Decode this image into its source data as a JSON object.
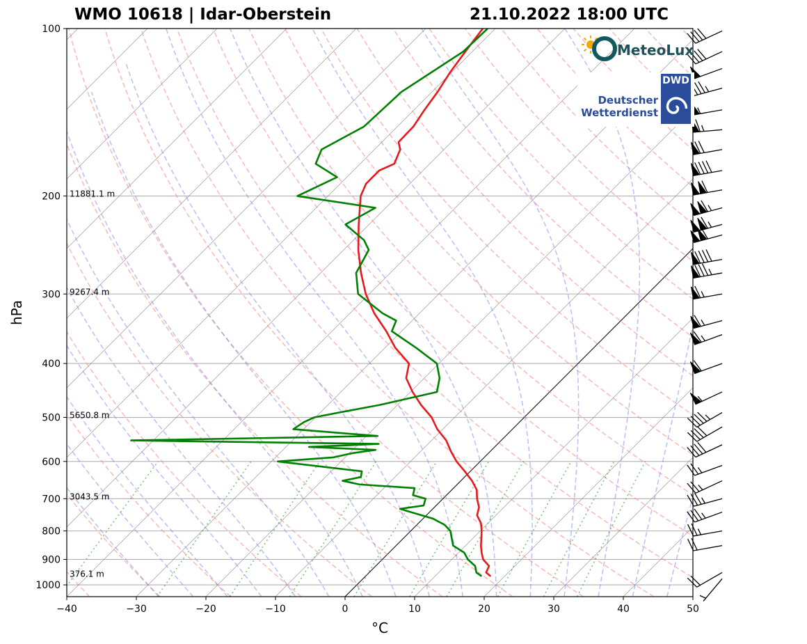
{
  "header": {
    "title_left": "WMO 10618 | Idar-Oberstein",
    "title_right": "21.10.2022 18:00 UTC"
  },
  "logos": {
    "meteolux": "MeteoLux",
    "dwd_abbr": "DWD",
    "dwd_line1": "Deutscher",
    "dwd_line2": "Wetterdienst"
  },
  "chart_data": {
    "type": "skew-t",
    "title": "WMO 10618 | Idar-Oberstein — 21.10.2022 18:00 UTC",
    "xlabel": "°C",
    "ylabel": "hPa",
    "xlim": [
      -40,
      50
    ],
    "ylim": [
      1050,
      100
    ],
    "x_ticks": [
      -40,
      -30,
      -20,
      -10,
      0,
      10,
      20,
      30,
      40,
      50
    ],
    "y_ticks": [
      100,
      200,
      300,
      400,
      500,
      600,
      700,
      800,
      900,
      1000
    ],
    "grid": true,
    "height_labels": [
      {
        "p": 200,
        "label": "11881.1 m"
      },
      {
        "p": 300,
        "label": "9267.4 m"
      },
      {
        "p": 500,
        "label": "5650.8 m"
      },
      {
        "p": 700,
        "label": "3043.5 m"
      },
      {
        "p": 965,
        "label": "376.1 m"
      }
    ],
    "series": [
      {
        "name": "Temperature",
        "color": "#e41a1c",
        "points": [
          [
            965,
            18.0
          ],
          [
            950,
            16.8
          ],
          [
            925,
            16.3
          ],
          [
            900,
            14.5
          ],
          [
            875,
            13.3
          ],
          [
            850,
            12.2
          ],
          [
            800,
            10.2
          ],
          [
            775,
            9.0
          ],
          [
            750,
            7.3
          ],
          [
            725,
            6.4
          ],
          [
            700,
            4.9
          ],
          [
            675,
            3.6
          ],
          [
            650,
            1.6
          ],
          [
            625,
            -0.8
          ],
          [
            600,
            -3.4
          ],
          [
            575,
            -5.7
          ],
          [
            550,
            -7.9
          ],
          [
            525,
            -10.8
          ],
          [
            500,
            -13.3
          ],
          [
            475,
            -16.6
          ],
          [
            450,
            -19.7
          ],
          [
            425,
            -22.6
          ],
          [
            400,
            -24.3
          ],
          [
            375,
            -28.5
          ],
          [
            350,
            -32.2
          ],
          [
            325,
            -36.5
          ],
          [
            300,
            -40.5
          ],
          [
            275,
            -44.2
          ],
          [
            250,
            -47.9
          ],
          [
            225,
            -51.5
          ],
          [
            200,
            -55.3
          ],
          [
            190,
            -56.3
          ],
          [
            180,
            -56.3
          ],
          [
            175,
            -55.1
          ],
          [
            165,
            -56.3
          ],
          [
            160,
            -57.6
          ],
          [
            150,
            -57.7
          ],
          [
            140,
            -58.5
          ],
          [
            130,
            -59.2
          ],
          [
            120,
            -60.2
          ],
          [
            110,
            -61.0
          ],
          [
            100,
            -61.8
          ]
        ]
      },
      {
        "name": "Dewpoint",
        "color": "#008000",
        "points": [
          [
            965,
            16.7
          ],
          [
            950,
            15.4
          ],
          [
            925,
            14.3
          ],
          [
            900,
            12.3
          ],
          [
            875,
            10.8
          ],
          [
            850,
            8.2
          ],
          [
            800,
            5.7
          ],
          [
            780,
            4.0
          ],
          [
            760,
            1.4
          ],
          [
            735,
            -3.7
          ],
          [
            730,
            -4.7
          ],
          [
            720,
            -1.8
          ],
          [
            700,
            -2.5
          ],
          [
            690,
            -4.8
          ],
          [
            670,
            -5.6
          ],
          [
            660,
            -14.0
          ],
          [
            650,
            -17.0
          ],
          [
            640,
            -14.9
          ],
          [
            625,
            -15.6
          ],
          [
            600,
            -29.1
          ],
          [
            590,
            -21.7
          ],
          [
            580,
            -19.6
          ],
          [
            572,
            -16.7
          ],
          [
            565,
            -26.7
          ],
          [
            558,
            -17.1
          ],
          [
            550,
            -53.2
          ],
          [
            540,
            -18.4
          ],
          [
            525,
            -31.5
          ],
          [
            510,
            -31.0
          ],
          [
            500,
            -30.2
          ],
          [
            490,
            -27.3
          ],
          [
            475,
            -22.6
          ],
          [
            460,
            -18.8
          ],
          [
            450,
            -16.2
          ],
          [
            425,
            -17.8
          ],
          [
            400,
            -20.3
          ],
          [
            375,
            -25.5
          ],
          [
            350,
            -31.4
          ],
          [
            335,
            -32.3
          ],
          [
            325,
            -35.3
          ],
          [
            300,
            -41.6
          ],
          [
            275,
            -44.9
          ],
          [
            250,
            -46.4
          ],
          [
            240,
            -48.5
          ],
          [
            225,
            -53.4
          ],
          [
            210,
            -51.5
          ],
          [
            200,
            -64.4
          ],
          [
            185,
            -61.4
          ],
          [
            175,
            -66.4
          ],
          [
            165,
            -67.6
          ],
          [
            150,
            -64.8
          ],
          [
            130,
            -64.4
          ],
          [
            110,
            -61.3
          ],
          [
            100,
            -61.1
          ]
        ]
      }
    ],
    "reference_lines": {
      "isotherms_c": [
        -120,
        -110,
        -100,
        -90,
        -80,
        -70,
        -60,
        -50,
        -40,
        -30,
        -20,
        -10,
        0,
        10,
        20,
        30,
        40,
        50
      ],
      "highlight_isotherm_c": 0,
      "dry_adiabats_c": [
        -70,
        -60,
        -50,
        -40,
        -30,
        -20,
        -10,
        0,
        10,
        20,
        30,
        40,
        50,
        60,
        70,
        80,
        90,
        100,
        110,
        120,
        130,
        140,
        150,
        160,
        170,
        180,
        190,
        200,
        210,
        220
      ],
      "moist_adiabats_c": [
        -30,
        -25,
        -20,
        -15,
        -10,
        -5,
        0,
        5,
        10,
        15,
        20,
        25,
        30,
        35,
        40,
        45
      ],
      "mixing_ratios_gkg": [
        0.1,
        0.4,
        1,
        2,
        4,
        7,
        10,
        16,
        24,
        32
      ]
    },
    "wind_barbs": [
      {
        "p": 975,
        "speed_kt": 5,
        "dir_deg": 220
      },
      {
        "p": 950,
        "speed_kt": 20,
        "dir_deg": 240
      },
      {
        "p": 850,
        "speed_kt": 20,
        "dir_deg": 260
      },
      {
        "p": 800,
        "speed_kt": 25,
        "dir_deg": 260
      },
      {
        "p": 740,
        "speed_kt": 35,
        "dir_deg": 250
      },
      {
        "p": 700,
        "speed_kt": 35,
        "dir_deg": 255
      },
      {
        "p": 650,
        "speed_kt": 25,
        "dir_deg": 245
      },
      {
        "p": 610,
        "speed_kt": 25,
        "dir_deg": 250
      },
      {
        "p": 560,
        "speed_kt": 40,
        "dir_deg": 245
      },
      {
        "p": 520,
        "speed_kt": 40,
        "dir_deg": 240
      },
      {
        "p": 490,
        "speed_kt": 45,
        "dir_deg": 240
      },
      {
        "p": 450,
        "speed_kt": 55,
        "dir_deg": 245
      },
      {
        "p": 400,
        "speed_kt": 60,
        "dir_deg": 250
      },
      {
        "p": 355,
        "speed_kt": 65,
        "dir_deg": 250
      },
      {
        "p": 335,
        "speed_kt": 65,
        "dir_deg": 255
      },
      {
        "p": 300,
        "speed_kt": 65,
        "dir_deg": 260
      },
      {
        "p": 275,
        "speed_kt": 85,
        "dir_deg": 260
      },
      {
        "p": 260,
        "speed_kt": 90,
        "dir_deg": 260
      },
      {
        "p": 235,
        "speed_kt": 110,
        "dir_deg": 255
      },
      {
        "p": 225,
        "speed_kt": 115,
        "dir_deg": 255
      },
      {
        "p": 210,
        "speed_kt": 115,
        "dir_deg": 255
      },
      {
        "p": 195,
        "speed_kt": 110,
        "dir_deg": 260
      },
      {
        "p": 180,
        "speed_kt": 90,
        "dir_deg": 260
      },
      {
        "p": 165,
        "speed_kt": 70,
        "dir_deg": 260
      },
      {
        "p": 152,
        "speed_kt": 65,
        "dir_deg": 265
      },
      {
        "p": 140,
        "speed_kt": 55,
        "dir_deg": 260
      },
      {
        "p": 128,
        "speed_kt": 45,
        "dir_deg": 255
      },
      {
        "p": 118,
        "speed_kt": 50,
        "dir_deg": 250
      },
      {
        "p": 110,
        "speed_kt": 40,
        "dir_deg": 245
      },
      {
        "p": 101,
        "speed_kt": 40,
        "dir_deg": 245
      }
    ]
  }
}
